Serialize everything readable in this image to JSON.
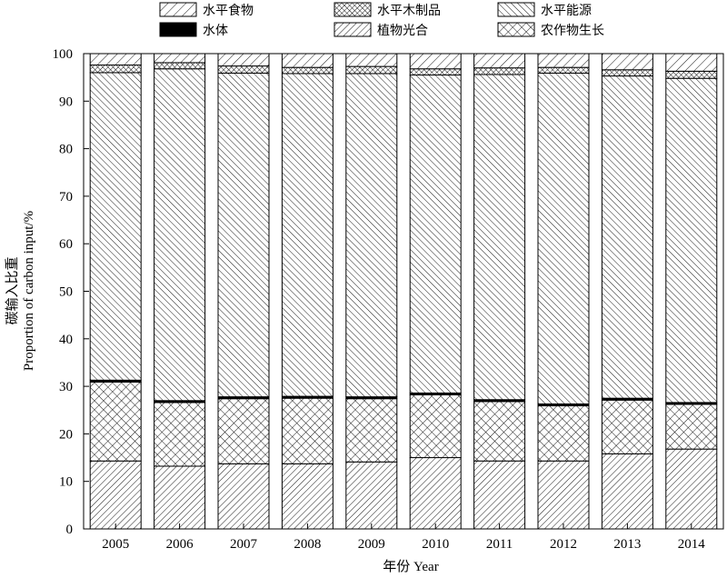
{
  "chart_data": {
    "type": "bar",
    "stacked": true,
    "categories": [
      "2005",
      "2006",
      "2007",
      "2008",
      "2009",
      "2010",
      "2011",
      "2012",
      "2013",
      "2014"
    ],
    "series": [
      {
        "name": "植物光合",
        "pattern": "diag-forward-dense",
        "values": [
          14.3,
          13.2,
          13.7,
          13.7,
          14.1,
          15.0,
          14.3,
          14.3,
          15.8,
          16.8
        ]
      },
      {
        "name": "农作物生长",
        "pattern": "crosshatch",
        "values": [
          16.6,
          13.4,
          13.7,
          13.8,
          13.3,
          13.2,
          12.5,
          11.6,
          11.3,
          9.4
        ]
      },
      {
        "name": "水体",
        "pattern": "solid-black",
        "values": [
          0.4,
          0.4,
          0.4,
          0.4,
          0.4,
          0.4,
          0.4,
          0.4,
          0.4,
          0.4
        ]
      },
      {
        "name": "水平能源",
        "pattern": "diag-back",
        "values": [
          64.7,
          69.8,
          68.1,
          67.9,
          68.0,
          66.9,
          68.4,
          69.6,
          67.8,
          68.2
        ]
      },
      {
        "name": "水平木制品",
        "pattern": "crosshatch-dense",
        "values": [
          1.6,
          1.3,
          1.5,
          1.3,
          1.5,
          1.3,
          1.4,
          1.2,
          1.3,
          1.5
        ]
      },
      {
        "name": "水平食物",
        "pattern": "diag-forward",
        "values": [
          2.4,
          1.9,
          2.6,
          2.9,
          2.7,
          3.2,
          3.0,
          2.9,
          3.4,
          3.7
        ]
      }
    ],
    "legend_order": [
      "水平食物",
      "水平木制品",
      "水平能源",
      "水体",
      "植物光合",
      "农作物生长"
    ],
    "xlabel": "年份 Year",
    "ylabel_cn": "碳输入比重",
    "ylabel_en": "Proportion of carbon input/%",
    "ylim": [
      0,
      100
    ],
    "yticks": [
      "0",
      "10",
      "20",
      "30",
      "40",
      "50",
      "60",
      "70",
      "80",
      "90",
      "100"
    ],
    "grid": false,
    "legend_position": "top"
  }
}
